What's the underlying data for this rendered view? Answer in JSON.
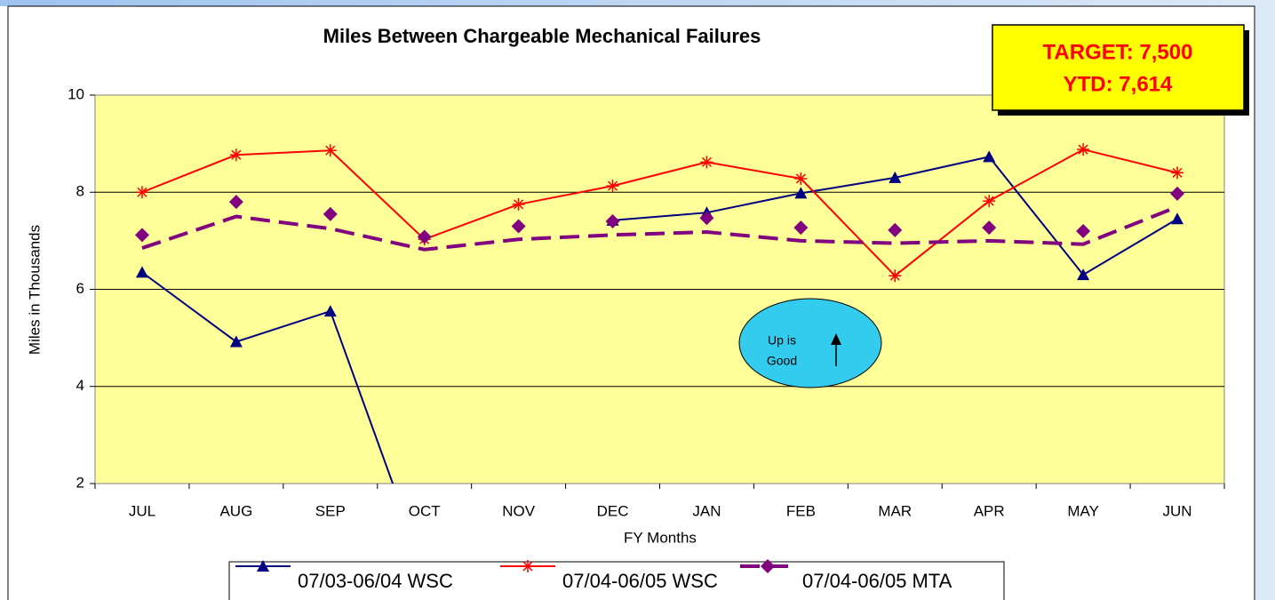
{
  "chart_data": {
    "type": "line",
    "title": "Miles Between Chargeable Mechanical Failures",
    "y_label": "Miles in Thousands",
    "x_label": "FY Months",
    "categories": [
      "JUL",
      "AUG",
      "SEP",
      "OCT",
      "NOV",
      "DEC",
      "JAN",
      "FEB",
      "MAR",
      "APR",
      "MAY",
      "JUN"
    ],
    "series": [
      {
        "name": "07/03-06/04 WSC",
        "color": "#000080",
        "marker": "triangle",
        "values": [
          6.35,
          4.92,
          5.55,
          0.2,
          null,
          7.42,
          7.58,
          7.98,
          8.3,
          8.73,
          6.3,
          7.45
        ]
      },
      {
        "name": "07/04-06/05 WSC",
        "color": "#ff0000",
        "marker": "asterisk",
        "values": [
          8.0,
          8.77,
          8.86,
          7.03,
          7.75,
          8.13,
          8.62,
          8.28,
          6.28,
          7.82,
          8.88,
          8.4
        ]
      },
      {
        "name": "07/04-06/05 MTA",
        "color": "#800080",
        "marker": "diamond",
        "values": [
          7.12,
          7.8,
          7.55,
          7.08,
          7.3,
          7.4,
          7.47,
          7.27,
          7.22,
          7.27,
          7.2,
          7.97
        ],
        "line_values": [
          6.85,
          7.5,
          7.25,
          6.82,
          7.03,
          7.12,
          7.18,
          7.0,
          6.95,
          7.0,
          6.93,
          7.7
        ]
      }
    ],
    "ylim": [
      2,
      10
    ],
    "yticks": [
      2,
      4,
      6,
      8,
      10
    ],
    "grid": true,
    "target_box": [
      "TARGET: 7,500",
      "YTD: 7,614"
    ],
    "note": [
      "Up is",
      "Good"
    ]
  }
}
